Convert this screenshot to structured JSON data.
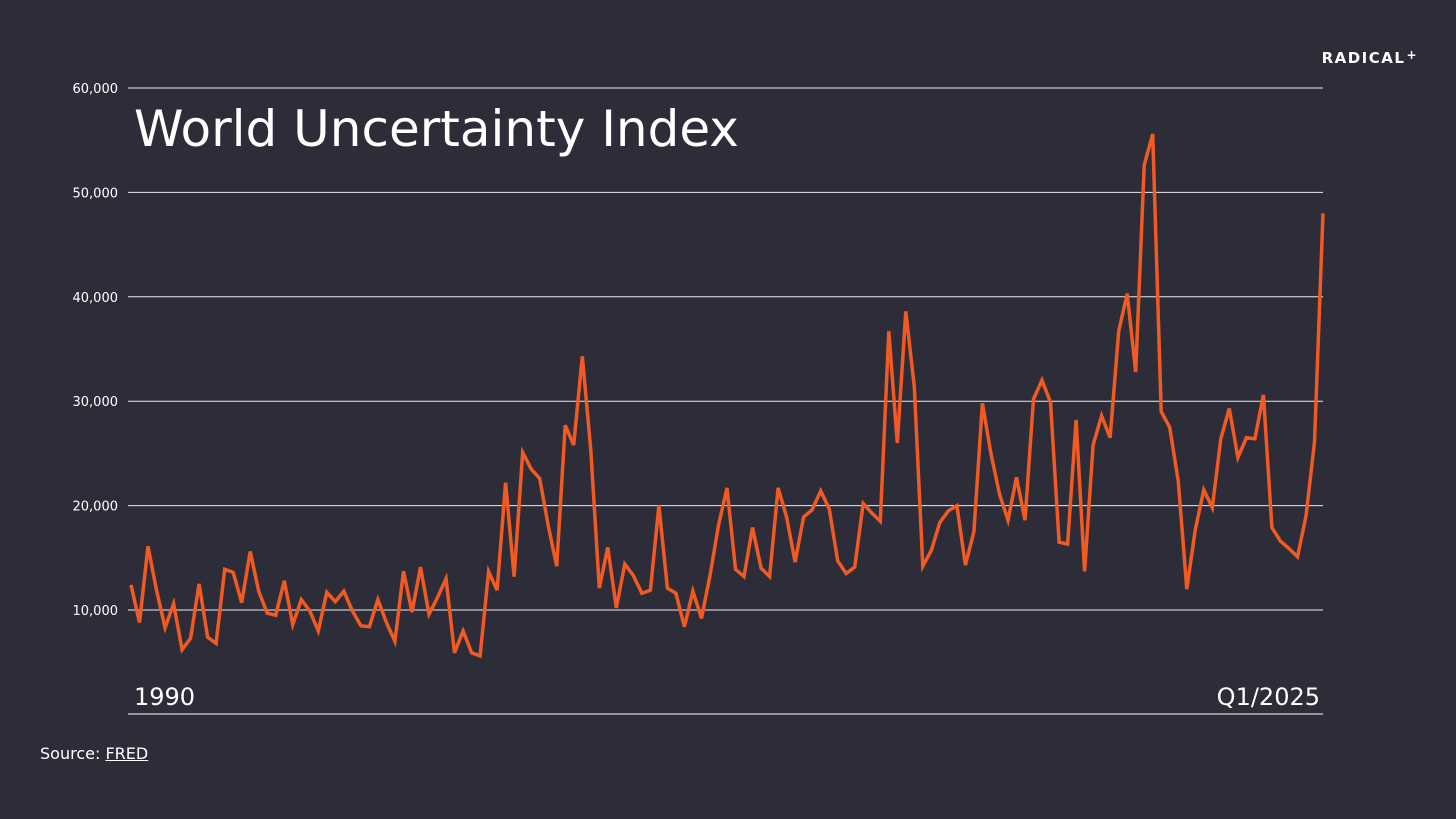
{
  "brand": {
    "name": "RADICAL",
    "mark": "+"
  },
  "source": {
    "label": "Source:",
    "link_text": "FRED"
  },
  "colors": {
    "background": "#2d2d3a",
    "line": "#f15a22",
    "text": "#ffffff",
    "grid": "#ffffff"
  },
  "chart_data": {
    "type": "line",
    "title": "World Uncertainty Index",
    "x_start_label": "1990",
    "x_end_label": "Q1/2025",
    "xlabel": "",
    "ylabel": "",
    "ylim": [
      0,
      60000
    ],
    "yticks": [
      10000,
      20000,
      30000,
      40000,
      50000,
      60000
    ],
    "ytick_labels": [
      "10,000",
      "20,000",
      "30,000",
      "40,000",
      "50,000",
      "60,000"
    ],
    "grid": true,
    "series": [
      {
        "values": [
          12400,
          8800,
          16100,
          11900,
          8300,
          10600,
          6200,
          7300,
          12500,
          7400,
          6800,
          13900,
          13600,
          10700,
          15600,
          11800,
          9700,
          9500,
          12800,
          8600,
          11000,
          9900,
          8000,
          11700,
          10800,
          11800,
          9900,
          8500,
          8400,
          11000,
          8800,
          7000,
          13700,
          9800,
          14100,
          9600,
          11200,
          13000,
          5900,
          8000,
          5900,
          5600,
          13700,
          11900,
          22200,
          13200,
          25100,
          23500,
          22600,
          18100,
          14200,
          27700,
          25800,
          34300,
          25300,
          12100,
          16000,
          10200,
          14400,
          13300,
          11600,
          11900,
          20000,
          12100,
          11600,
          8400,
          11800,
          9200,
          13300,
          18100,
          21700,
          13900,
          13200,
          17900,
          14000,
          13200,
          21700,
          18900,
          14600,
          18900,
          19600,
          21400,
          19700,
          14700,
          13500,
          14100,
          20200,
          19300,
          18500,
          36700,
          26000,
          38600,
          31400,
          14200,
          15700,
          18400,
          19500,
          20000,
          14300,
          17500,
          29800,
          25000,
          21100,
          18600,
          22700,
          18600,
          30200,
          32000,
          29900,
          16500,
          16300,
          28200,
          13700,
          25800,
          28600,
          26500,
          36700,
          40300,
          32800,
          52600,
          55600,
          29000,
          27500,
          22300,
          12000,
          17700,
          21500,
          19800,
          26400,
          29300,
          24600,
          26500,
          26400,
          30600,
          17900,
          16600,
          15900,
          15100,
          19000,
          26100,
          48000
        ]
      }
    ]
  }
}
